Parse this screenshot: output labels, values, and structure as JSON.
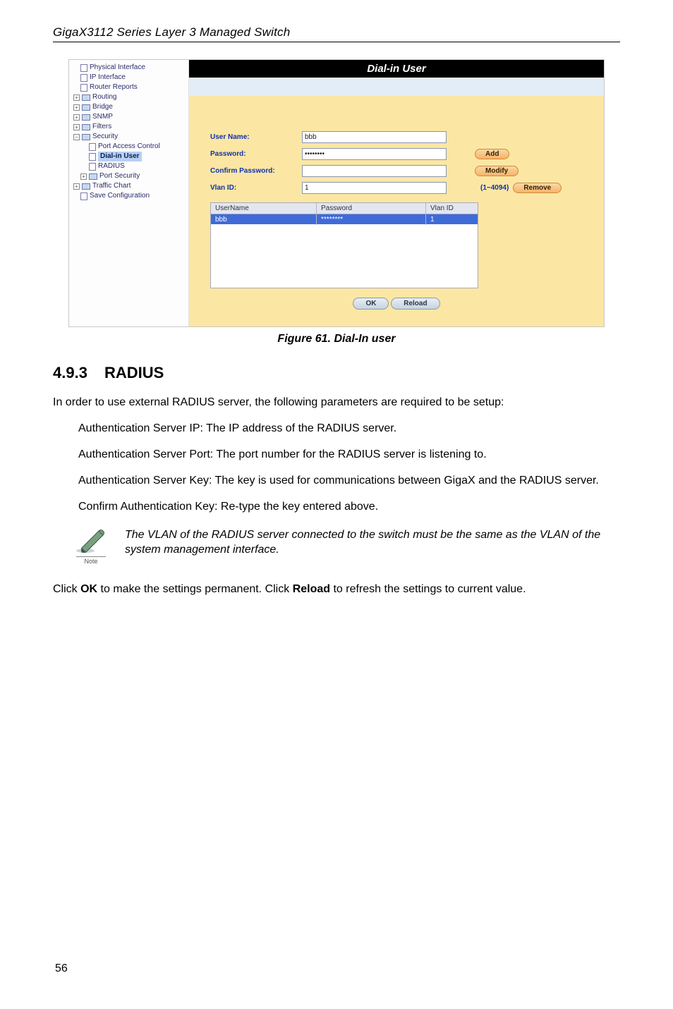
{
  "header": "GigaX3112 Series Layer 3 Managed Switch",
  "tree": {
    "items": [
      {
        "label": "Physical Interface",
        "type": "page",
        "ind": "ind1"
      },
      {
        "label": "IP Interface",
        "type": "page",
        "ind": "ind1"
      },
      {
        "label": "Router Reports",
        "type": "page",
        "ind": "ind1"
      },
      {
        "label": "Routing",
        "type": "folder",
        "toggle": "+",
        "ind": ""
      },
      {
        "label": "Bridge",
        "type": "folder",
        "toggle": "+",
        "ind": ""
      },
      {
        "label": "SNMP",
        "type": "folder",
        "toggle": "+",
        "ind": ""
      },
      {
        "label": "Filters",
        "type": "folder",
        "toggle": "+",
        "ind": ""
      },
      {
        "label": "Security",
        "type": "folder",
        "toggle": "−",
        "ind": ""
      },
      {
        "label": "Port Access Control",
        "type": "page",
        "ind": "ind2"
      },
      {
        "label": "Dial-in User",
        "type": "page",
        "ind": "ind2",
        "selected": true
      },
      {
        "label": "RADIUS",
        "type": "page",
        "ind": "ind2"
      },
      {
        "label": "Port Security",
        "type": "folder",
        "toggle": "+",
        "ind": "ind1"
      },
      {
        "label": "Traffic Chart",
        "type": "folder",
        "toggle": "+",
        "ind": ""
      },
      {
        "label": "Save Configuration",
        "type": "page",
        "ind": "ind1"
      }
    ]
  },
  "panel": {
    "title": "Dial-in User",
    "fields": {
      "username_label": "User Name:",
      "username_value": "bbb",
      "password_label": "Password:",
      "password_value": "••••••••",
      "confirm_label": "Confirm Password:",
      "confirm_value": "",
      "vlan_label": "Vlan ID:",
      "vlan_value": "1",
      "vlan_range": "(1~4094)"
    },
    "buttons": {
      "add": "Add",
      "modify": "Modify",
      "remove": "Remove"
    },
    "table": {
      "headers": {
        "user": "UserName",
        "pass": "Password",
        "vlan": "Vlan ID"
      },
      "row": {
        "user": "bbb",
        "pass": "********",
        "vlan": "1"
      }
    },
    "footer_buttons": {
      "ok": "OK",
      "reload": "Reload"
    }
  },
  "caption": "Figure 61. Dial-In user",
  "section": {
    "num": "4.9.3",
    "title": "RADIUS"
  },
  "paragraphs": {
    "intro": "In order to use external RADIUS server, the following parameters are required to be setup:",
    "p1": "Authentication Server IP: The IP address of the RADIUS server.",
    "p2": "Authentication Server Port: The port number for the RADIUS server is listening to.",
    "p3": "Authentication Server Key: The key is used for communications between GigaX and the RADIUS server.",
    "p4": "Confirm Authentication Key: Re-type the key entered above."
  },
  "note": {
    "label": "Note",
    "text": "The VLAN of the RADIUS server connected to the switch must be the same as the VLAN of the system management interface."
  },
  "closing_before": "Click ",
  "closing_ok": "OK",
  "closing_mid": " to make the settings permanent. Click ",
  "closing_reload": "Reload",
  "closing_after": " to refresh the settings to current value.",
  "pagenum": "56"
}
